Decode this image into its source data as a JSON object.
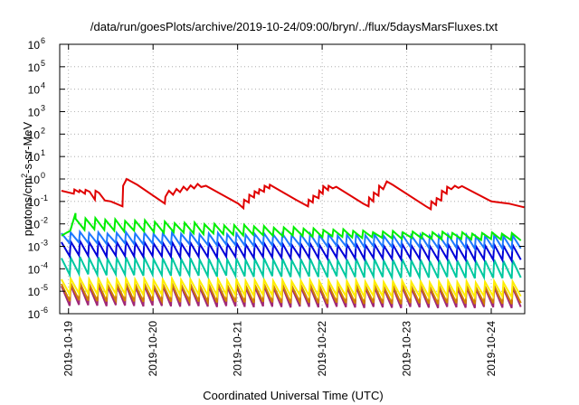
{
  "chart_data": {
    "type": "line",
    "title": "/data/run/goesPlots/archive/2019-10-24/09:00/bryn/../flux/5daysMarsFluxes.txt",
    "xlabel": "Coordinated Universal Time (UTC)",
    "ylabel_parts": [
      "protons/cm",
      "2",
      "-s-sr-MeV"
    ],
    "yscale": "log",
    "xlim": [
      "2019-10-18T21:30",
      "2019-10-24T09:30"
    ],
    "ylim": [
      1e-06,
      1000000.0
    ],
    "grid": true,
    "x_tick_labels": [
      "2019-10-19",
      "2019-10-20",
      "2019-10-21",
      "2019-10-22",
      "2019-10-23",
      "2019-10-24"
    ],
    "y_ticks": [
      {
        "base": "10",
        "exp": "-6"
      },
      {
        "base": "10",
        "exp": "-5"
      },
      {
        "base": "10",
        "exp": "-4"
      },
      {
        "base": "10",
        "exp": "-3"
      },
      {
        "base": "10",
        "exp": "-2"
      },
      {
        "base": "10",
        "exp": "-1"
      },
      {
        "base": "10",
        "exp": "0"
      },
      {
        "base": "10",
        "exp": "1"
      },
      {
        "base": "10",
        "exp": "2"
      },
      {
        "base": "10",
        "exp": "3"
      },
      {
        "base": "10",
        "exp": "4"
      },
      {
        "base": "10",
        "exp": "5"
      },
      {
        "base": "10",
        "exp": "6"
      }
    ],
    "series": [
      {
        "color": "#e00000",
        "data": [
          [
            "2019-10-18T22:00",
            0.3
          ],
          [
            "2019-10-19T01:30",
            0.22
          ],
          [
            "2019-10-19T01:40",
            0.34
          ],
          [
            "2019-10-19T03:00",
            0.26
          ],
          [
            "2019-10-19T03:10",
            0.32
          ],
          [
            "2019-10-19T04:40",
            0.22
          ],
          [
            "2019-10-19T04:50",
            0.33
          ],
          [
            "2019-10-19T06:00",
            0.27
          ],
          [
            "2019-10-19T07:30",
            0.12
          ],
          [
            "2019-10-19T07:40",
            0.3
          ],
          [
            "2019-10-19T08:40",
            0.24
          ],
          [
            "2019-10-19T10:20",
            0.11
          ],
          [
            "2019-10-19T12:00",
            0.1
          ],
          [
            "2019-10-19T15:20",
            0.06
          ],
          [
            "2019-10-19T15:30",
            0.5
          ],
          [
            "2019-10-19T16:30",
            1.0
          ],
          [
            "2019-10-19T19:30",
            0.55
          ],
          [
            "2019-10-20T03:20",
            0.08
          ],
          [
            "2019-10-20T03:30",
            0.16
          ],
          [
            "2019-10-20T04:30",
            0.3
          ],
          [
            "2019-10-20T05:40",
            0.2
          ],
          [
            "2019-10-20T06:40",
            0.36
          ],
          [
            "2019-10-20T07:40",
            0.26
          ],
          [
            "2019-10-20T08:40",
            0.45
          ],
          [
            "2019-10-20T09:40",
            0.32
          ],
          [
            "2019-10-20T10:40",
            0.52
          ],
          [
            "2019-10-20T11:40",
            0.38
          ],
          [
            "2019-10-20T12:40",
            0.6
          ],
          [
            "2019-10-20T13:40",
            0.44
          ],
          [
            "2019-10-20T15:00",
            0.5
          ],
          [
            "2019-10-21T00:10",
            0.08
          ],
          [
            "2019-10-21T01:40",
            0.05
          ],
          [
            "2019-10-21T01:50",
            0.12
          ],
          [
            "2019-10-21T03:10",
            0.09
          ],
          [
            "2019-10-21T03:20",
            0.2
          ],
          [
            "2019-10-21T04:40",
            0.15
          ],
          [
            "2019-10-21T04:50",
            0.28
          ],
          [
            "2019-10-21T06:00",
            0.22
          ],
          [
            "2019-10-21T06:10",
            0.35
          ],
          [
            "2019-10-21T07:30",
            0.27
          ],
          [
            "2019-10-21T07:40",
            0.5
          ],
          [
            "2019-10-21T09:00",
            0.38
          ],
          [
            "2019-10-21T09:10",
            0.55
          ],
          [
            "2019-10-21T16:30",
            0.12
          ],
          [
            "2019-10-21T20:00",
            0.06
          ],
          [
            "2019-10-21T20:10",
            0.12
          ],
          [
            "2019-10-21T21:20",
            0.09
          ],
          [
            "2019-10-21T21:30",
            0.18
          ],
          [
            "2019-10-21T23:00",
            0.14
          ],
          [
            "2019-10-21T23:10",
            0.3
          ],
          [
            "2019-10-22T00:10",
            0.22
          ],
          [
            "2019-10-22T00:20",
            0.48
          ],
          [
            "2019-10-22T01:40",
            0.32
          ],
          [
            "2019-10-22T01:50",
            0.5
          ],
          [
            "2019-10-22T03:00",
            0.38
          ],
          [
            "2019-10-22T04:00",
            0.45
          ],
          [
            "2019-10-22T11:40",
            0.08
          ],
          [
            "2019-10-22T13:10",
            0.06
          ],
          [
            "2019-10-22T13:20",
            0.15
          ],
          [
            "2019-10-22T14:30",
            0.1
          ],
          [
            "2019-10-22T14:40",
            0.25
          ],
          [
            "2019-10-22T16:00",
            0.18
          ],
          [
            "2019-10-22T16:10",
            0.5
          ],
          [
            "2019-10-22T17:20",
            0.35
          ],
          [
            "2019-10-22T18:20",
            0.78
          ],
          [
            "2019-10-22T20:00",
            0.55
          ],
          [
            "2019-10-23T05:30",
            0.06
          ],
          [
            "2019-10-23T06:50",
            0.045
          ],
          [
            "2019-10-23T07:00",
            0.1
          ],
          [
            "2019-10-23T08:20",
            0.07
          ],
          [
            "2019-10-23T08:30",
            0.14
          ],
          [
            "2019-10-23T09:50",
            0.11
          ],
          [
            "2019-10-23T10:00",
            0.3
          ],
          [
            "2019-10-23T11:20",
            0.22
          ],
          [
            "2019-10-23T11:30",
            0.45
          ],
          [
            "2019-10-23T12:40",
            0.35
          ],
          [
            "2019-10-23T13:40",
            0.5
          ],
          [
            "2019-10-23T14:40",
            0.4
          ],
          [
            "2019-10-23T15:40",
            0.48
          ],
          [
            "2019-10-24T00:00",
            0.1
          ],
          [
            "2019-10-24T05:00",
            0.08
          ],
          [
            "2019-10-24T09:20",
            0.055
          ]
        ]
      },
      {
        "color": "#00ee00",
        "spikes": {
          "start": "2019-10-19T02:00",
          "end": "2019-10-24T08:40",
          "points": 45,
          "hi": [
            0.02,
            0.01,
            0.005,
            0.004
          ],
          "lo": [
            0.006,
            0.0035,
            0.0025,
            0.002
          ]
        },
        "data": [
          [
            "2019-10-18T22:00",
            0.003
          ],
          [
            "2019-10-19T00:30",
            0.005
          ],
          [
            "2019-10-19T02:00",
            0.03
          ]
        ]
      },
      {
        "color": "#1e78ff",
        "spikes": {
          "start": "2019-10-18T22:00",
          "end": "2019-10-24T08:40",
          "points": 50,
          "hi": [
            0.0045,
            0.004,
            0.0035,
            0.0032
          ],
          "lo": [
            0.0015,
            0.0012,
            0.001,
            0.0008
          ]
        }
      },
      {
        "color": "#0000d8",
        "spikes": {
          "start": "2019-10-18T22:00",
          "end": "2019-10-24T08:40",
          "points": 50,
          "hi": [
            0.0018,
            0.0015,
            0.0013,
            0.0012
          ],
          "lo": [
            0.0004,
            0.00035,
            0.0003,
            0.00025
          ]
        }
      },
      {
        "color": "#00c8a0",
        "spikes": {
          "start": "2019-10-18T22:00",
          "end": "2019-10-24T08:40",
          "points": 50,
          "hi": [
            0.00035,
            0.0003,
            0.00028,
            0.00025
          ],
          "lo": [
            6e-05,
            5e-05,
            4.5e-05,
            4e-05
          ]
        }
      },
      {
        "color": "#ffee00",
        "spikes": {
          "start": "2019-10-18T22:00",
          "end": "2019-10-24T08:40",
          "points": 50,
          "hi": [
            4e-05,
            3.5e-05,
            3e-05,
            2.8e-05
          ],
          "lo": [
            8e-06,
            7e-06,
            6e-06,
            6e-06
          ]
        }
      },
      {
        "color": "#d08000",
        "spikes": {
          "start": "2019-10-18T22:00",
          "end": "2019-10-24T08:40",
          "points": 50,
          "hi": [
            2.5e-05,
            2.2e-05,
            2e-05,
            1.8e-05
          ],
          "lo": [
            4e-06,
            3.5e-06,
            3e-06,
            3e-06
          ]
        }
      },
      {
        "color": "#a02878",
        "spikes": {
          "start": "2019-10-18T22:00",
          "end": "2019-10-24T08:40",
          "points": 50,
          "hi": [
            2e-05,
            1.8e-05,
            1.6e-05,
            1.5e-05
          ],
          "lo": [
            2.5e-06,
            2.2e-06,
            2e-06,
            2e-06
          ]
        }
      }
    ]
  }
}
